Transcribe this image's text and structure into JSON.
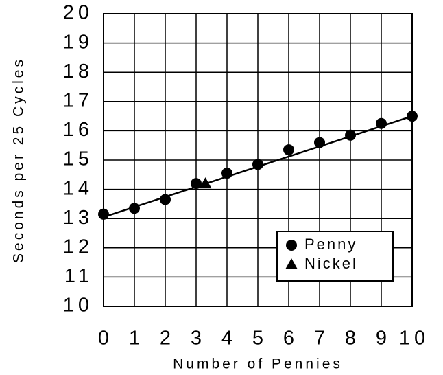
{
  "chart_data": {
    "type": "scatter",
    "xlabel": "Number of Pennies",
    "ylabel": "Seconds per 25 Cycles",
    "xlim": [
      0,
      10
    ],
    "xticks": [
      0,
      1,
      2,
      3,
      4,
      5,
      6,
      7,
      8,
      9,
      10
    ],
    "ylim": [
      10,
      20
    ],
    "yticks": [
      10,
      11,
      12,
      13,
      14,
      15,
      16,
      17,
      18,
      19,
      20
    ],
    "grid": true,
    "legend": "lower right",
    "series": [
      {
        "name": "Penny",
        "color": "#000000",
        "marker": "circle",
        "x": [
          0,
          1,
          2,
          3,
          4,
          5,
          6,
          7,
          8,
          9,
          10
        ],
        "values": [
          13.15,
          13.35,
          13.65,
          14.2,
          14.55,
          14.85,
          15.35,
          15.6,
          15.85,
          16.25,
          16.5
        ]
      },
      {
        "name": "Nickel",
        "color": "#000000",
        "marker": "triangle",
        "x": [
          3.3
        ],
        "values": [
          14.2
        ]
      }
    ],
    "trend_line": {
      "x": [
        0,
        10
      ],
      "values": [
        13.05,
        16.5
      ],
      "color": "#000000"
    }
  }
}
